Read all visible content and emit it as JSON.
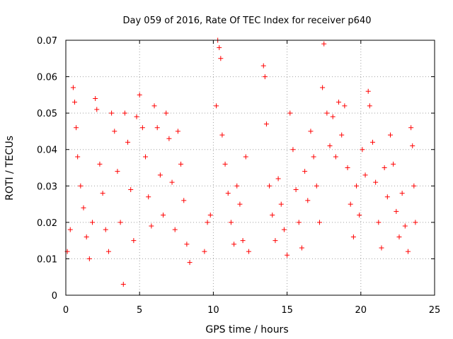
{
  "chart_data": {
    "type": "scatter",
    "title": "Day 059 of 2016, Rate Of TEC Index for receiver p640",
    "xlabel": "GPS time / hours",
    "ylabel": "ROTI / TECUs",
    "xlim": [
      0,
      25
    ],
    "ylim": [
      0,
      0.07
    ],
    "xticks": [
      0,
      5,
      10,
      15,
      20,
      25
    ],
    "xtick_labels": [
      "0",
      "5",
      "10",
      "15",
      "20",
      "25"
    ],
    "yticks": [
      0,
      0.01,
      0.02,
      0.03,
      0.04,
      0.05,
      0.06,
      0.07
    ],
    "ytick_labels": [
      "0",
      "0.01",
      "0.02",
      "0.03",
      "0.04",
      "0.05",
      "0.06",
      "0.07"
    ],
    "grid": true,
    "marker": "+",
    "color": "#ff0000",
    "data_gaps_hours": [
      [
        8.5,
        9.3
      ],
      [
        9.9,
        10.0
      ],
      [
        12.5,
        13.3
      ]
    ],
    "series": [
      {
        "name": "ROTI",
        "points": [
          [
            0.1,
            0.012
          ],
          [
            0.3,
            0.018
          ],
          [
            0.5,
            0.057
          ],
          [
            0.6,
            0.053
          ],
          [
            0.7,
            0.046
          ],
          [
            0.8,
            0.038
          ],
          [
            1.0,
            0.03
          ],
          [
            1.2,
            0.024
          ],
          [
            1.4,
            0.016
          ],
          [
            1.6,
            0.01
          ],
          [
            1.8,
            0.02
          ],
          [
            2.0,
            0.054
          ],
          [
            2.1,
            0.051
          ],
          [
            2.3,
            0.036
          ],
          [
            2.5,
            0.028
          ],
          [
            2.7,
            0.018
          ],
          [
            2.9,
            0.012
          ],
          [
            3.1,
            0.05
          ],
          [
            3.3,
            0.045
          ],
          [
            3.5,
            0.034
          ],
          [
            3.7,
            0.02
          ],
          [
            3.9,
            0.003
          ],
          [
            4.0,
            0.05
          ],
          [
            4.2,
            0.042
          ],
          [
            4.4,
            0.029
          ],
          [
            4.6,
            0.015
          ],
          [
            4.8,
            0.049
          ],
          [
            5.0,
            0.055
          ],
          [
            5.2,
            0.046
          ],
          [
            5.4,
            0.038
          ],
          [
            5.6,
            0.027
          ],
          [
            5.8,
            0.019
          ],
          [
            6.0,
            0.052
          ],
          [
            6.2,
            0.046
          ],
          [
            6.4,
            0.033
          ],
          [
            6.6,
            0.022
          ],
          [
            6.8,
            0.05
          ],
          [
            7.0,
            0.043
          ],
          [
            7.2,
            0.031
          ],
          [
            7.4,
            0.018
          ],
          [
            7.6,
            0.045
          ],
          [
            7.8,
            0.036
          ],
          [
            8.0,
            0.026
          ],
          [
            8.2,
            0.014
          ],
          [
            8.4,
            0.009
          ],
          [
            9.4,
            0.012
          ],
          [
            9.6,
            0.02
          ],
          [
            9.8,
            0.022
          ],
          [
            10.2,
            0.052
          ],
          [
            10.3,
            0.07
          ],
          [
            10.4,
            0.068
          ],
          [
            10.5,
            0.065
          ],
          [
            10.6,
            0.044
          ],
          [
            10.8,
            0.036
          ],
          [
            11.0,
            0.028
          ],
          [
            11.2,
            0.02
          ],
          [
            11.4,
            0.014
          ],
          [
            11.6,
            0.03
          ],
          [
            11.8,
            0.025
          ],
          [
            12.0,
            0.015
          ],
          [
            12.2,
            0.038
          ],
          [
            12.4,
            0.012
          ],
          [
            13.4,
            0.063
          ],
          [
            13.5,
            0.06
          ],
          [
            13.6,
            0.047
          ],
          [
            13.8,
            0.03
          ],
          [
            14.0,
            0.022
          ],
          [
            14.2,
            0.015
          ],
          [
            14.4,
            0.032
          ],
          [
            14.6,
            0.025
          ],
          [
            14.8,
            0.018
          ],
          [
            15.0,
            0.011
          ],
          [
            15.2,
            0.05
          ],
          [
            15.4,
            0.04
          ],
          [
            15.6,
            0.029
          ],
          [
            15.8,
            0.02
          ],
          [
            16.0,
            0.013
          ],
          [
            16.2,
            0.034
          ],
          [
            16.4,
            0.026
          ],
          [
            16.6,
            0.045
          ],
          [
            16.8,
            0.038
          ],
          [
            17.0,
            0.03
          ],
          [
            17.2,
            0.02
          ],
          [
            17.4,
            0.057
          ],
          [
            17.5,
            0.069
          ],
          [
            17.7,
            0.05
          ],
          [
            17.9,
            0.041
          ],
          [
            18.1,
            0.049
          ],
          [
            18.3,
            0.038
          ],
          [
            18.5,
            0.053
          ],
          [
            18.7,
            0.044
          ],
          [
            18.9,
            0.052
          ],
          [
            19.1,
            0.035
          ],
          [
            19.3,
            0.025
          ],
          [
            19.5,
            0.016
          ],
          [
            19.7,
            0.03
          ],
          [
            19.9,
            0.022
          ],
          [
            20.1,
            0.04
          ],
          [
            20.3,
            0.033
          ],
          [
            20.5,
            0.056
          ],
          [
            20.6,
            0.052
          ],
          [
            20.8,
            0.042
          ],
          [
            21.0,
            0.031
          ],
          [
            21.2,
            0.02
          ],
          [
            21.4,
            0.013
          ],
          [
            21.6,
            0.035
          ],
          [
            21.8,
            0.027
          ],
          [
            22.0,
            0.044
          ],
          [
            22.2,
            0.036
          ],
          [
            22.4,
            0.023
          ],
          [
            22.6,
            0.016
          ],
          [
            22.8,
            0.028
          ],
          [
            23.0,
            0.019
          ],
          [
            23.2,
            0.012
          ],
          [
            23.4,
            0.046
          ],
          [
            23.5,
            0.041
          ],
          [
            23.6,
            0.03
          ],
          [
            23.7,
            0.02
          ]
        ]
      }
    ]
  }
}
